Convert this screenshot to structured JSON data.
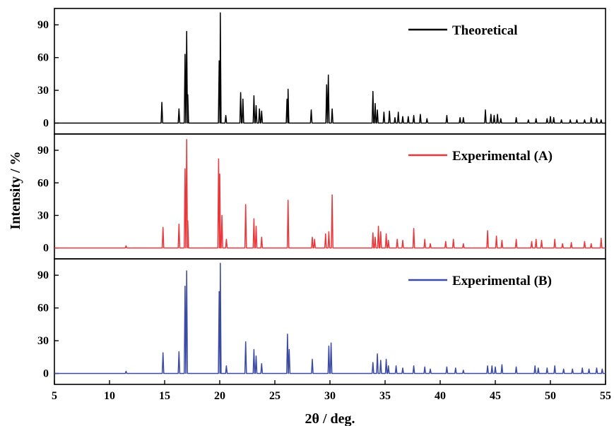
{
  "chart_data": {
    "type": "line",
    "xlabel": "2θ / deg.",
    "ylabel": "Intensity / %",
    "xlim": [
      5,
      55
    ],
    "xticks": [
      "5",
      "10",
      "15",
      "20",
      "25",
      "30",
      "35",
      "40",
      "45",
      "50",
      "55"
    ],
    "ylim": [
      -10,
      105
    ],
    "yticks": [
      "0",
      "30",
      "60",
      "90"
    ],
    "grid": false,
    "legend_position": "top-right",
    "panels": [
      {
        "name": "Theoretical",
        "color": "#000000",
        "peaks": [
          [
            14.75,
            19
          ],
          [
            16.3,
            13
          ],
          [
            16.85,
            63
          ],
          [
            17.0,
            84
          ],
          [
            17.1,
            26
          ],
          [
            19.95,
            57
          ],
          [
            20.05,
            101
          ],
          [
            20.55,
            7
          ],
          [
            21.9,
            28
          ],
          [
            22.1,
            22
          ],
          [
            23.1,
            25
          ],
          [
            23.3,
            16
          ],
          [
            23.6,
            13
          ],
          [
            23.8,
            11
          ],
          [
            26.1,
            22
          ],
          [
            26.2,
            31
          ],
          [
            28.3,
            12
          ],
          [
            29.7,
            35
          ],
          [
            29.85,
            44
          ],
          [
            30.2,
            13
          ],
          [
            33.9,
            29
          ],
          [
            34.1,
            18
          ],
          [
            34.3,
            12
          ],
          [
            34.9,
            10
          ],
          [
            35.4,
            11
          ],
          [
            35.9,
            5
          ],
          [
            36.2,
            10
          ],
          [
            36.6,
            6
          ],
          [
            37.1,
            6
          ],
          [
            37.6,
            7
          ],
          [
            38.2,
            8
          ],
          [
            38.8,
            4
          ],
          [
            40.6,
            7
          ],
          [
            41.8,
            5
          ],
          [
            42.1,
            5
          ],
          [
            44.1,
            12
          ],
          [
            44.6,
            8
          ],
          [
            44.9,
            7
          ],
          [
            45.2,
            8
          ],
          [
            45.5,
            4
          ],
          [
            46.9,
            5
          ],
          [
            48.0,
            3
          ],
          [
            48.7,
            4
          ],
          [
            49.7,
            4
          ],
          [
            50.0,
            6
          ],
          [
            50.3,
            5
          ],
          [
            51.0,
            3
          ],
          [
            51.8,
            3
          ],
          [
            52.4,
            3
          ],
          [
            53.1,
            3
          ],
          [
            53.7,
            5
          ],
          [
            54.2,
            4
          ],
          [
            54.6,
            3
          ]
        ]
      },
      {
        "name": "Experimental (A)",
        "color": "#e8383c",
        "peaks": [
          [
            11.5,
            2
          ],
          [
            14.85,
            19
          ],
          [
            16.3,
            22
          ],
          [
            16.85,
            73
          ],
          [
            17.0,
            100
          ],
          [
            17.1,
            25
          ],
          [
            19.9,
            82
          ],
          [
            20.0,
            68
          ],
          [
            20.2,
            30
          ],
          [
            20.6,
            8
          ],
          [
            22.35,
            40
          ],
          [
            23.1,
            27
          ],
          [
            23.3,
            20
          ],
          [
            23.8,
            10
          ],
          [
            26.2,
            44
          ],
          [
            28.4,
            10
          ],
          [
            28.6,
            8
          ],
          [
            29.6,
            13
          ],
          [
            29.9,
            15
          ],
          [
            30.2,
            49
          ],
          [
            33.9,
            14
          ],
          [
            34.1,
            10
          ],
          [
            34.4,
            20
          ],
          [
            34.6,
            15
          ],
          [
            35.1,
            13
          ],
          [
            35.3,
            7
          ],
          [
            36.1,
            8
          ],
          [
            36.6,
            7
          ],
          [
            37.6,
            18
          ],
          [
            38.6,
            8
          ],
          [
            39.1,
            4
          ],
          [
            40.5,
            6
          ],
          [
            41.2,
            8
          ],
          [
            42.1,
            4
          ],
          [
            44.3,
            16
          ],
          [
            45.1,
            11
          ],
          [
            45.6,
            7
          ],
          [
            46.9,
            8
          ],
          [
            48.3,
            6
          ],
          [
            48.7,
            8
          ],
          [
            49.2,
            7
          ],
          [
            50.4,
            8
          ],
          [
            51.1,
            4
          ],
          [
            51.9,
            5
          ],
          [
            53.1,
            6
          ],
          [
            53.7,
            4
          ],
          [
            54.6,
            9
          ]
        ]
      },
      {
        "name": "Experimental (B)",
        "color": "#3b4aa3",
        "peaks": [
          [
            11.5,
            2
          ],
          [
            14.85,
            19
          ],
          [
            16.3,
            20
          ],
          [
            16.85,
            80
          ],
          [
            17.0,
            94
          ],
          [
            19.95,
            75
          ],
          [
            20.05,
            101
          ],
          [
            20.6,
            7
          ],
          [
            22.35,
            29
          ],
          [
            23.1,
            22
          ],
          [
            23.3,
            16
          ],
          [
            23.8,
            9
          ],
          [
            26.15,
            36
          ],
          [
            26.3,
            22
          ],
          [
            28.4,
            13
          ],
          [
            29.9,
            25
          ],
          [
            30.1,
            28
          ],
          [
            33.9,
            10
          ],
          [
            34.3,
            18
          ],
          [
            34.6,
            12
          ],
          [
            35.1,
            13
          ],
          [
            35.3,
            7
          ],
          [
            36.0,
            7
          ],
          [
            36.6,
            5
          ],
          [
            37.6,
            7
          ],
          [
            38.6,
            6
          ],
          [
            39.1,
            4
          ],
          [
            40.6,
            6
          ],
          [
            41.4,
            5
          ],
          [
            42.1,
            3
          ],
          [
            44.3,
            7
          ],
          [
            44.7,
            7
          ],
          [
            45.0,
            6
          ],
          [
            45.6,
            8
          ],
          [
            46.9,
            6
          ],
          [
            48.6,
            7
          ],
          [
            48.9,
            5
          ],
          [
            49.7,
            5
          ],
          [
            50.4,
            7
          ],
          [
            51.2,
            4
          ],
          [
            52.0,
            4
          ],
          [
            52.9,
            5
          ],
          [
            53.5,
            4
          ],
          [
            54.2,
            5
          ],
          [
            54.7,
            4
          ]
        ]
      }
    ]
  }
}
